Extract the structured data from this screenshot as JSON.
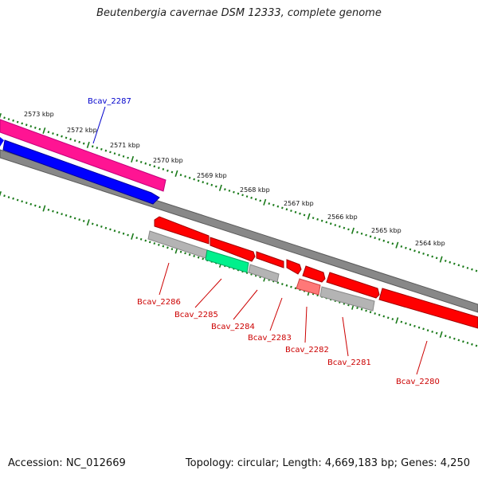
{
  "title": "Beutenbergia cavernae DSM 12333, complete genome",
  "footer": {
    "accession": "Accession: NC_012669",
    "topology": "Topology: circular; Length: 4,669,183 bp; Genes: 4,250"
  },
  "colors": {
    "forward_gene": "#ff0000",
    "selected_gene": "#ff1493",
    "blue_gene": "#0000ff",
    "pseudo_gene": "#b0b0b0",
    "rna_gene": "#00e68c",
    "pale_gene": "#ff7070",
    "backbone": "#808080",
    "tick": "#1a7a1a",
    "label_red": "#cc0000",
    "label_blue": "#0000cc"
  },
  "scale_labels": [
    {
      "text": "2573 kbp",
      "pos": 2573
    },
    {
      "text": "2572 kbp",
      "pos": 2572
    },
    {
      "text": "2571 kbp",
      "pos": 2571
    },
    {
      "text": "2570 kbp",
      "pos": 2570
    },
    {
      "text": "2569 kbp",
      "pos": 2569
    },
    {
      "text": "2568 kbp",
      "pos": 2568
    },
    {
      "text": "2567 kbp",
      "pos": 2567
    },
    {
      "text": "2566 kbp",
      "pos": 2566
    },
    {
      "text": "2565 kbp",
      "pos": 2565
    },
    {
      "text": "2564 kbp",
      "pos": 2564
    }
  ],
  "genes": [
    {
      "label": "Bcav_2287",
      "track": "blue_gene"
    },
    {
      "label": "Bcav_2286",
      "track": "pseudo_gene"
    },
    {
      "label": "Bcav_2285",
      "track": "rna_gene"
    },
    {
      "label": "Bcav_2284",
      "track": "pseudo_gene"
    },
    {
      "label": "Bcav_2283",
      "track": "forward_gene"
    },
    {
      "label": "Bcav_2282",
      "track": "pale_gene"
    },
    {
      "label": "Bcav_2281",
      "track": "pseudo_gene"
    },
    {
      "label": "Bcav_2280",
      "track": "forward_gene"
    }
  ]
}
